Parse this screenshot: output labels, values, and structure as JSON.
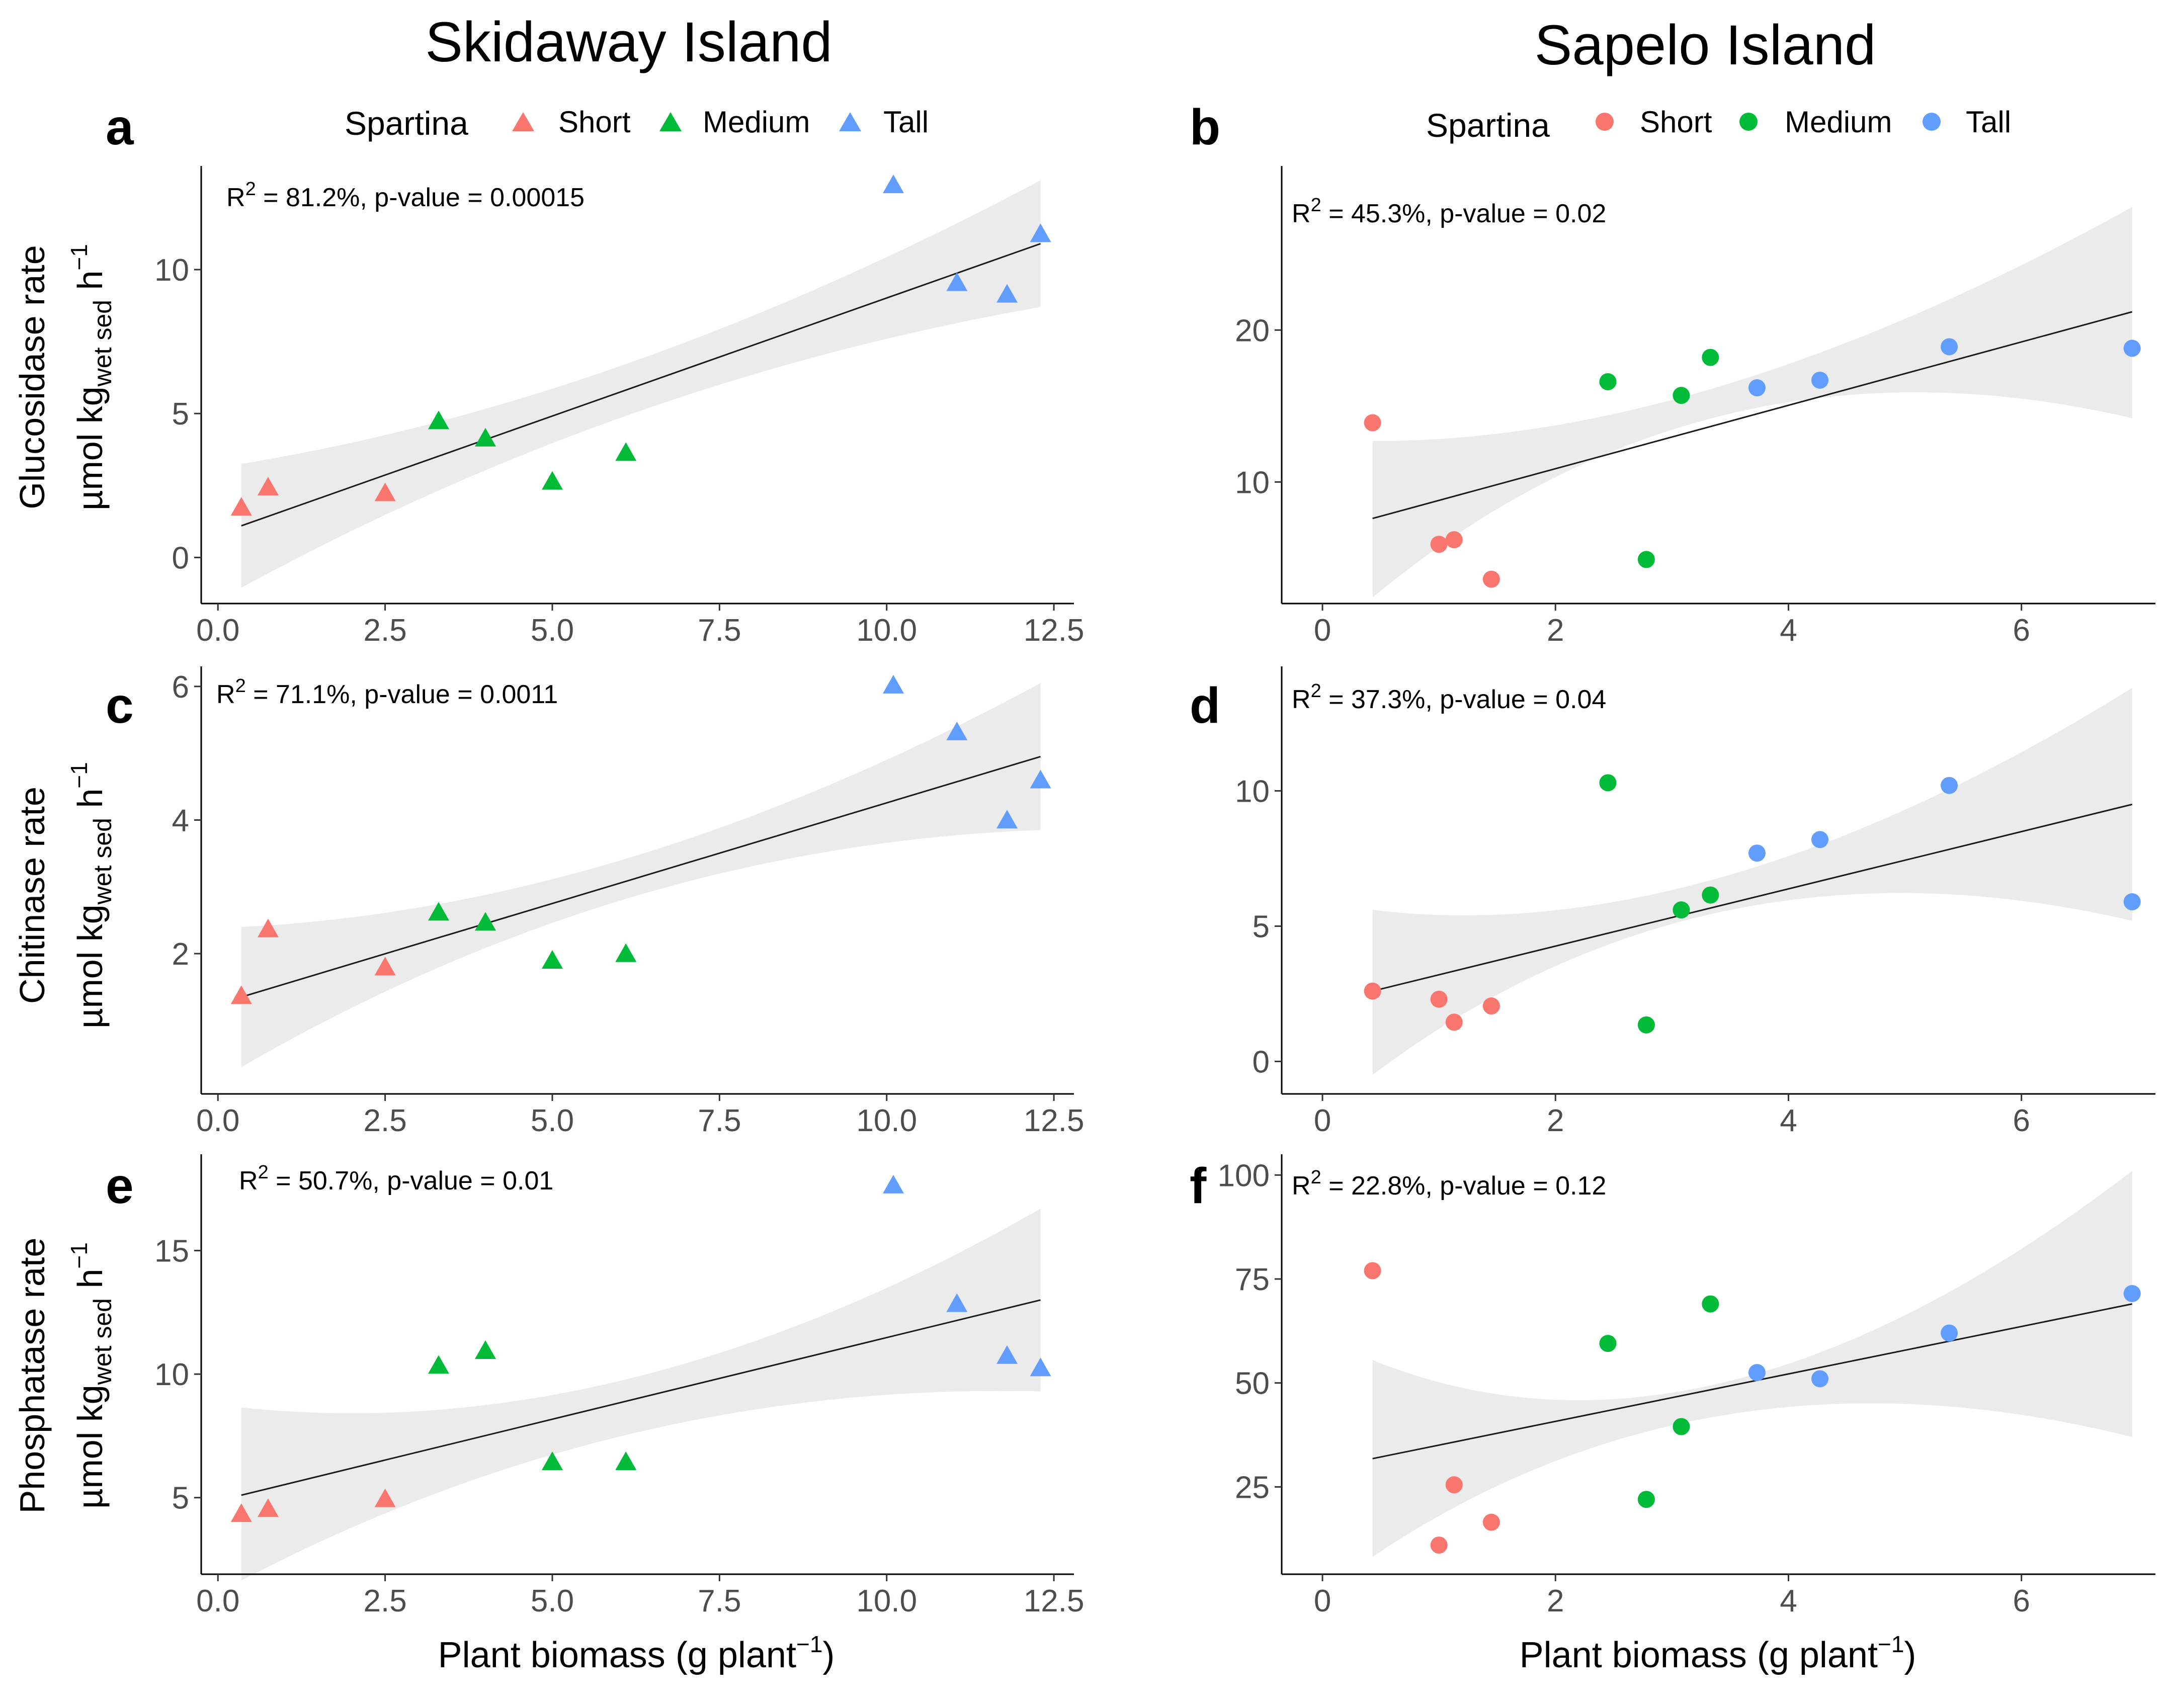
{
  "titles": {
    "left": "Skidaway Island",
    "right": "Sapelo Island"
  },
  "legend": {
    "title": "Spartina",
    "entries": [
      {
        "label": "Short",
        "color": "#F8766D"
      },
      {
        "label": "Medium",
        "color": "#00BA38"
      },
      {
        "label": "Tall",
        "color": "#619CFF"
      }
    ]
  },
  "xlabel": "Plant biomass (g plant",
  "xlabel_exp": "−1",
  "xlabel_close": ")",
  "ylabels": {
    "row1": "Glucosidase rate",
    "row2": "Chitinase rate",
    "row3": "Phosphatase rate",
    "unit_main": "µmol kg",
    "unit_sub": "wet sed",
    "unit_h": " h",
    "unit_exp": "−1"
  },
  "chart_data": [
    {
      "tag": "a",
      "site": "Skidaway Island",
      "type": "scatter",
      "marker": "triangle",
      "stat_r2": "R",
      "stat_exp": "2",
      "stat_text": " = 81.2%, p-value = 0.00015",
      "xlim": [
        -0.25,
        12.8
      ],
      "ylim": [
        -1.6,
        13.6
      ],
      "xticks": [
        0,
        2.5,
        5,
        7.5,
        10,
        12.5
      ],
      "xtick_labels": [
        "0.0",
        "2.5",
        "5.0",
        "7.5",
        "10.0",
        "12.5"
      ],
      "yticks": [
        0,
        5,
        10
      ],
      "ytick_labels": [
        "0",
        "5",
        "10"
      ],
      "fit": {
        "x": [
          0.35,
          12.3
        ],
        "y": [
          1.1,
          10.9
        ]
      },
      "ci_upper": [
        [
          0.35,
          3.25
        ],
        [
          6.2,
          6.8
        ],
        [
          12.3,
          13.1
        ]
      ],
      "ci_lower": [
        [
          0.35,
          -1.05
        ],
        [
          6.2,
          5.0
        ],
        [
          12.3,
          8.7
        ]
      ],
      "series": [
        {
          "name": "Short",
          "points": [
            [
              0.35,
              1.7
            ],
            [
              0.75,
              2.4
            ],
            [
              2.5,
              2.2
            ]
          ]
        },
        {
          "name": "Medium",
          "points": [
            [
              3.3,
              4.7
            ],
            [
              4.0,
              4.1
            ],
            [
              5.0,
              2.6
            ],
            [
              6.1,
              3.6
            ]
          ]
        },
        {
          "name": "Tall",
          "points": [
            [
              10.1,
              12.9
            ],
            [
              11.05,
              9.5
            ],
            [
              11.8,
              9.1
            ],
            [
              12.3,
              11.2
            ]
          ]
        }
      ]
    },
    {
      "tag": "b",
      "site": "Sapelo Island",
      "type": "scatter",
      "marker": "circle",
      "stat_r2": "R",
      "stat_exp": "2",
      "stat_text": " = 45.3%, p-value = 0.02",
      "xlim": [
        -0.35,
        7.15
      ],
      "ylim": [
        2.0,
        30.8
      ],
      "xticks": [
        0,
        2,
        4,
        6
      ],
      "xtick_labels": [
        "0",
        "2",
        "4",
        "6"
      ],
      "yticks": [
        10,
        20
      ],
      "ytick_labels": [
        "10",
        "20"
      ],
      "fit": {
        "x": [
          0.43,
          6.95
        ],
        "y": [
          7.6,
          21.2
        ]
      },
      "ci_upper": [
        [
          0.43,
          12.7
        ],
        [
          3.5,
          16.5
        ],
        [
          6.95,
          28.1
        ]
      ],
      "ci_lower": [
        [
          0.43,
          2.4
        ],
        [
          3.5,
          14.5
        ],
        [
          6.95,
          14.2
        ]
      ],
      "series": [
        {
          "name": "Short",
          "points": [
            [
              0.43,
              13.9
            ],
            [
              1.0,
              5.9
            ],
            [
              1.13,
              6.2
            ],
            [
              1.45,
              3.6
            ]
          ]
        },
        {
          "name": "Medium",
          "points": [
            [
              2.45,
              16.6
            ],
            [
              2.78,
              4.9
            ],
            [
              3.08,
              15.7
            ],
            [
              3.33,
              18.2
            ]
          ]
        },
        {
          "name": "Tall",
          "points": [
            [
              3.73,
              16.2
            ],
            [
              4.27,
              16.7
            ],
            [
              5.38,
              18.9
            ],
            [
              6.95,
              18.8
            ]
          ]
        }
      ]
    },
    {
      "tag": "c",
      "site": "Skidaway Island",
      "type": "scatter",
      "marker": "triangle",
      "stat_r2": "R",
      "stat_exp": "2",
      "stat_text": " = 71.1%, p-value = 0.0011",
      "xlim": [
        -0.25,
        12.8
      ],
      "ylim": [
        -0.1,
        6.3
      ],
      "xticks": [
        0,
        2.5,
        5,
        7.5,
        10,
        12.5
      ],
      "xtick_labels": [
        "0.0",
        "2.5",
        "5.0",
        "7.5",
        "10.0",
        "12.5"
      ],
      "yticks": [
        2,
        4,
        6
      ],
      "ytick_labels": [
        "2",
        "4",
        "6"
      ],
      "fit": {
        "x": [
          0.35,
          12.3
        ],
        "y": [
          1.35,
          4.95
        ]
      },
      "ci_upper": [
        [
          0.35,
          2.4
        ],
        [
          6.2,
          3.45
        ],
        [
          12.3,
          6.05
        ]
      ],
      "ci_lower": [
        [
          0.35,
          0.3
        ],
        [
          6.2,
          2.85
        ],
        [
          12.3,
          3.85
        ]
      ],
      "series": [
        {
          "name": "Short",
          "points": [
            [
              0.35,
              1.35
            ],
            [
              0.75,
              2.35
            ],
            [
              2.5,
              1.78
            ]
          ]
        },
        {
          "name": "Medium",
          "points": [
            [
              3.3,
              2.6
            ],
            [
              4.0,
              2.45
            ],
            [
              5.0,
              1.88
            ],
            [
              6.1,
              1.98
            ]
          ]
        },
        {
          "name": "Tall",
          "points": [
            [
              10.1,
              6.0
            ],
            [
              11.05,
              5.3
            ],
            [
              11.8,
              3.98
            ],
            [
              12.3,
              4.58
            ]
          ]
        }
      ]
    },
    {
      "tag": "d",
      "site": "Sapelo Island",
      "type": "scatter",
      "marker": "circle",
      "stat_r2": "R",
      "stat_exp": "2",
      "stat_text": " = 37.3%, p-value = 0.04",
      "xlim": [
        -0.35,
        7.15
      ],
      "ylim": [
        -1.2,
        14.6
      ],
      "xticks": [
        0,
        2,
        4,
        6
      ],
      "xtick_labels": [
        "0",
        "2",
        "4",
        "6"
      ],
      "yticks": [
        0,
        5,
        10
      ],
      "ytick_labels": [
        "0",
        "5",
        "10"
      ],
      "fit": {
        "x": [
          0.43,
          6.95
        ],
        "y": [
          2.6,
          9.5
        ]
      },
      "ci_upper": [
        [
          0.43,
          5.6
        ],
        [
          3.5,
          6.9
        ],
        [
          6.95,
          13.8
        ]
      ],
      "ci_lower": [
        [
          0.43,
          -0.5
        ],
        [
          3.5,
          5.6
        ],
        [
          6.95,
          5.2
        ]
      ],
      "series": [
        {
          "name": "Short",
          "points": [
            [
              0.43,
              2.6
            ],
            [
              1.0,
              2.3
            ],
            [
              1.13,
              1.45
            ],
            [
              1.45,
              2.05
            ]
          ]
        },
        {
          "name": "Medium",
          "points": [
            [
              2.45,
              10.3
            ],
            [
              2.78,
              1.35
            ],
            [
              3.08,
              5.6
            ],
            [
              3.33,
              6.15
            ]
          ]
        },
        {
          "name": "Tall",
          "points": [
            [
              3.73,
              7.7
            ],
            [
              4.27,
              8.2
            ],
            [
              5.38,
              10.2
            ],
            [
              6.95,
              5.9
            ]
          ]
        }
      ]
    },
    {
      "tag": "e",
      "site": "Skidaway Island",
      "type": "scatter",
      "marker": "triangle",
      "stat_r2": "R",
      "stat_exp": "2",
      "stat_text": " = 50.7%, p-value = 0.01",
      "xlim": [
        -0.25,
        12.8
      ],
      "ylim": [
        1.9,
        18.9
      ],
      "xticks": [
        0,
        2.5,
        5,
        7.5,
        10,
        12.5
      ],
      "xtick_labels": [
        "0.0",
        "2.5",
        "5.0",
        "7.5",
        "10.0",
        "12.5"
      ],
      "yticks": [
        5,
        10,
        15
      ],
      "ytick_labels": [
        "5",
        "10",
        "15"
      ],
      "fit": {
        "x": [
          0.35,
          12.3
        ],
        "y": [
          5.1,
          13.0
        ]
      },
      "ci_upper": [
        [
          0.35,
          8.65
        ],
        [
          6.2,
          9.85
        ],
        [
          12.3,
          16.7
        ]
      ],
      "ci_lower": [
        [
          0.35,
          1.65
        ],
        [
          6.2,
          7.6
        ],
        [
          12.3,
          9.3
        ]
      ],
      "series": [
        {
          "name": "Short",
          "points": [
            [
              0.35,
              4.3
            ],
            [
              0.75,
              4.5
            ],
            [
              2.5,
              4.9
            ]
          ]
        },
        {
          "name": "Medium",
          "points": [
            [
              3.3,
              10.3
            ],
            [
              4.0,
              10.9
            ],
            [
              5.0,
              6.4
            ],
            [
              6.1,
              6.4
            ]
          ]
        },
        {
          "name": "Tall",
          "points": [
            [
              10.1,
              17.6
            ],
            [
              11.05,
              12.8
            ],
            [
              11.8,
              10.7
            ],
            [
              12.3,
              10.2
            ]
          ]
        }
      ]
    },
    {
      "tag": "f",
      "site": "Sapelo Island",
      "type": "scatter",
      "marker": "circle",
      "stat_r2": "R",
      "stat_exp": "2",
      "stat_text": " = 22.8%, p-value = 0.12",
      "xlim": [
        -0.35,
        7.15
      ],
      "ylim": [
        4.0,
        105.0
      ],
      "xticks": [
        0,
        2,
        4,
        6
      ],
      "xtick_labels": [
        "0",
        "2",
        "4",
        "6"
      ],
      "yticks": [
        25,
        50,
        75,
        100
      ],
      "ytick_labels": [
        "25",
        "50",
        "75",
        "100"
      ],
      "fit": {
        "x": [
          0.43,
          6.95
        ],
        "y": [
          31.8,
          69.0
        ]
      },
      "ci_upper": [
        [
          0.43,
          55.5
        ],
        [
          3.5,
          50.5
        ],
        [
          6.95,
          101.0
        ]
      ],
      "ci_lower": [
        [
          0.43,
          8.2
        ],
        [
          3.5,
          42.5
        ],
        [
          6.95,
          37.0
        ]
      ],
      "series": [
        {
          "name": "Short",
          "points": [
            [
              0.43,
              77.0
            ],
            [
              1.0,
              11.0
            ],
            [
              1.13,
              25.5
            ],
            [
              1.45,
              16.5
            ]
          ]
        },
        {
          "name": "Medium",
          "points": [
            [
              2.45,
              59.5
            ],
            [
              2.78,
              22.0
            ],
            [
              3.08,
              39.5
            ],
            [
              3.33,
              69.0
            ]
          ]
        },
        {
          "name": "Tall",
          "points": [
            [
              3.73,
              52.5
            ],
            [
              4.27,
              51.0
            ],
            [
              5.38,
              62.0
            ],
            [
              6.95,
              71.5
            ]
          ]
        }
      ]
    }
  ]
}
